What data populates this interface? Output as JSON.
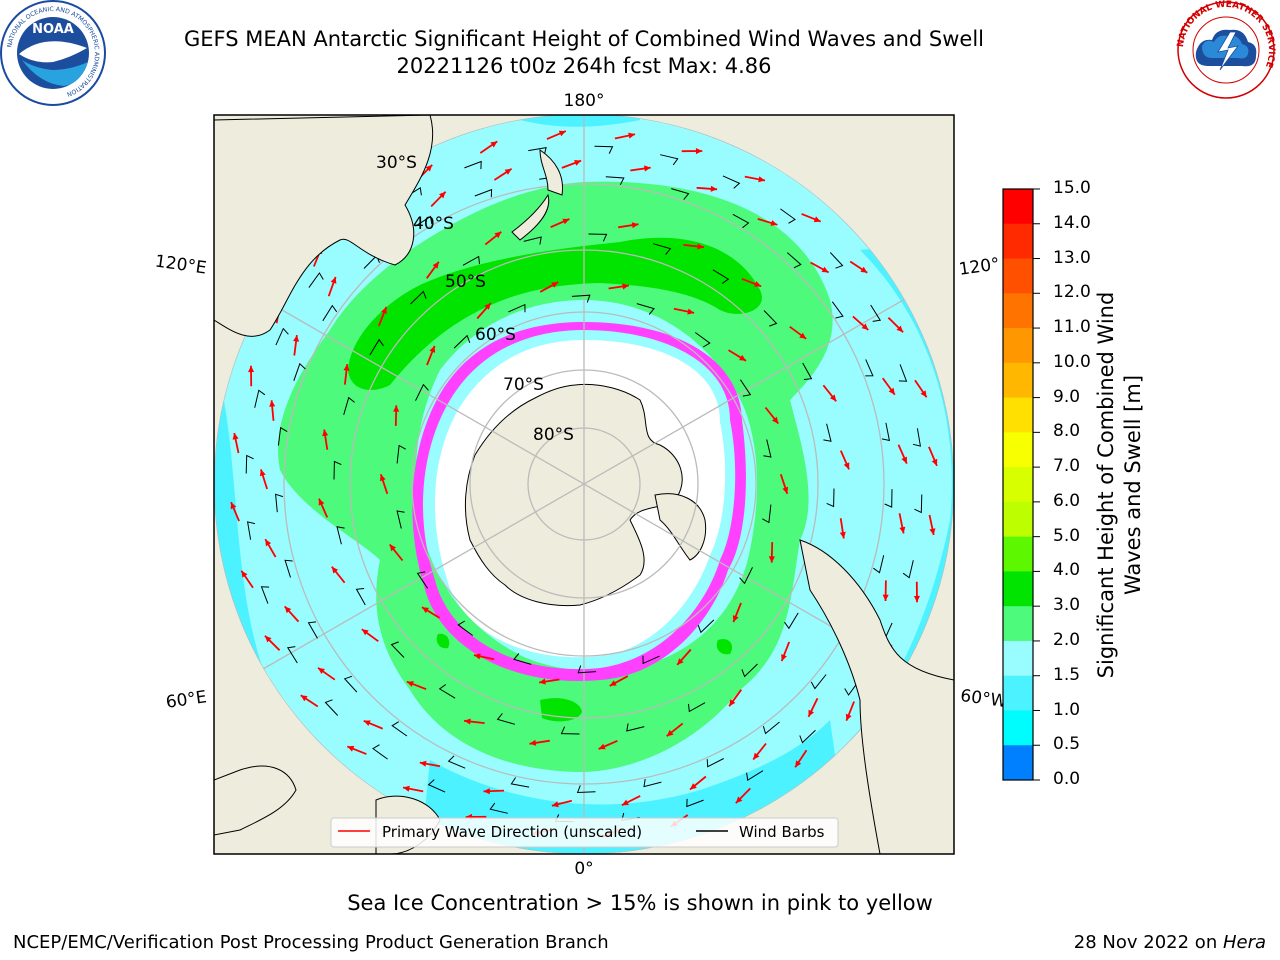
{
  "title": {
    "line1": "GEFS MEAN Antarctic Significant Height of Combined Wind Waves and Swell",
    "line2": "20221126 t00z 264h fcst   Max: 4.86"
  },
  "logos": {
    "noaa": {
      "text": "NOAA",
      "ring_text": "NATIONAL OCEANIC AND ATMOSPHERIC ADMINISTRATION",
      "dept_text": "U.S. DEPARTMENT OF COMMERCE"
    },
    "nws": {
      "ring_text": "NATIONAL WEATHER SERVICE"
    }
  },
  "map": {
    "projection": "south-polar-stereographic",
    "latitude_labels": [
      "30°S",
      "40°S",
      "50°S",
      "60°S",
      "70°S",
      "80°S"
    ],
    "longitude_labels": {
      "top": "180°",
      "bottom": "0°",
      "upper_left": "120°E",
      "lower_left": "60°E",
      "upper_right": "120°",
      "lower_right": "60°W"
    },
    "legend": {
      "wave_direction": "Primary Wave Direction (unscaled)",
      "wind_barbs": "Wind Barbs"
    },
    "colors": {
      "land": "#eeecdc",
      "ocean_low": "#4cf2ff",
      "ocean_mid": "#99fcff",
      "band_3_4": "#4dfa7b",
      "band_4_5": "#00e400",
      "arrow": "#ff0000",
      "sea_ice_pink": "#ff40ff",
      "sea_ice_yellow": "#ffc400",
      "sea_ice_orange": "#ff9a2e",
      "grid": "#bbbbbb"
    }
  },
  "colorbar": {
    "title": "Significant Height of Combined Wind Waves and Swell [m]",
    "ticks": [
      "15.0",
      "14.0",
      "13.0",
      "12.0",
      "11.0",
      "10.0",
      "9.0",
      "8.0",
      "7.0",
      "6.0",
      "5.0",
      "4.0",
      "3.0",
      "2.0",
      "1.5",
      "1.0",
      "0.5",
      "0.0"
    ],
    "colors": [
      "#ff0000",
      "#ff2a00",
      "#ff5000",
      "#ff7400",
      "#ff9800",
      "#ffb700",
      "#ffe000",
      "#f7ff00",
      "#d7ff00",
      "#bdff00",
      "#5df800",
      "#00e400",
      "#4dfa7b",
      "#99fcff",
      "#4cf2ff",
      "#00fdfd",
      "#0080ff",
      "#0000ff"
    ]
  },
  "notes": {
    "sea_ice": "Sea Ice Concentration > 15% is shown in pink to yellow"
  },
  "footer": {
    "left": "NCEP/EMC/Verification Post Processing Product Generation Branch",
    "right_date": "28 Nov 2022 on ",
    "right_system": "Hera"
  }
}
